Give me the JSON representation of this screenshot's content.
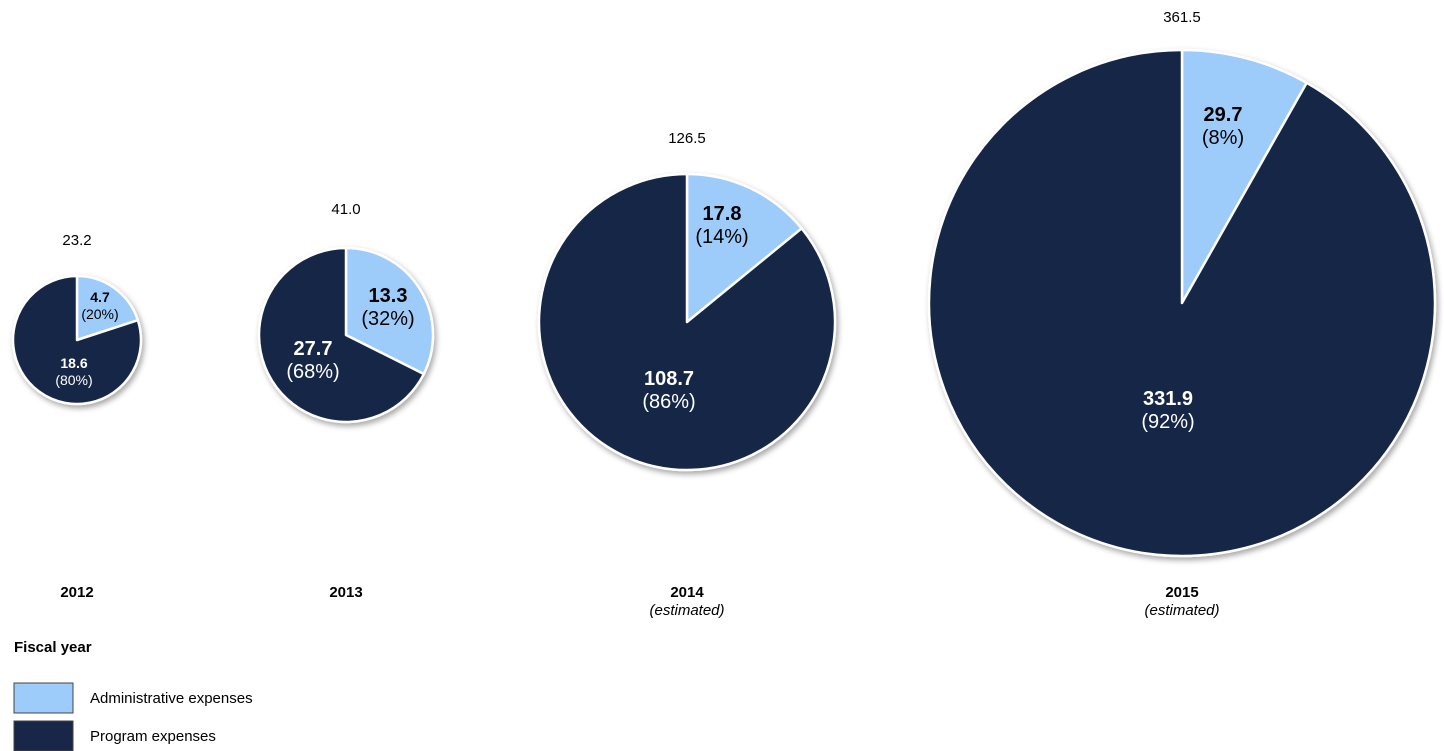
{
  "chart_data": {
    "type": "pie",
    "xlabel": "Fiscal year",
    "series": [
      {
        "name": "Administrative expenses",
        "color": "#9dcbfa"
      },
      {
        "name": "Program expenses",
        "color": "#182647"
      }
    ],
    "pies": [
      {
        "year": "2012",
        "note": "",
        "total": "23.2",
        "slices": [
          {
            "value": "4.7",
            "pct": "(20%)",
            "share": 0.2
          },
          {
            "value": "18.6",
            "pct": "(80%)",
            "share": 0.8
          }
        ]
      },
      {
        "year": "2013",
        "note": "",
        "total": "41.0",
        "slices": [
          {
            "value": "13.3",
            "pct": "(32%)",
            "share": 0.324
          },
          {
            "value": "27.7",
            "pct": "(68%)",
            "share": 0.676
          }
        ]
      },
      {
        "year": "2014",
        "note": "(estimated)",
        "total": "126.5",
        "slices": [
          {
            "value": "17.8",
            "pct": "(14%)",
            "share": 0.141
          },
          {
            "value": "108.7",
            "pct": "(86%)",
            "share": 0.859
          }
        ]
      },
      {
        "year": "2015",
        "note": "(estimated)",
        "total": "361.5",
        "slices": [
          {
            "value": "29.7",
            "pct": "(8%)",
            "share": 0.082
          },
          {
            "value": "331.9",
            "pct": "(92%)",
            "share": 0.918
          }
        ]
      }
    ]
  }
}
